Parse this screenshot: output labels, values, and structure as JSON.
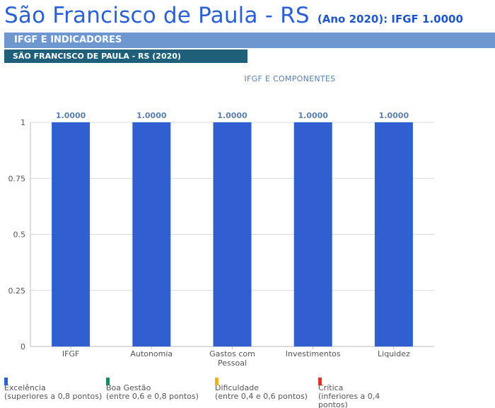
{
  "header": {
    "title": "São Francisco de Paula - RS",
    "subtitle": "(Ano 2020): IFGF  1.0000"
  },
  "section": {
    "primary_label": "IFGF E INDICADORES",
    "secondary_label": "SÃO FRANCISCO DE PAULA - RS (2020)"
  },
  "chart_data": {
    "type": "bar",
    "title": "IFGF E COMPONENTES",
    "categories": [
      "IFGF",
      "Autonomia",
      "Gastos com Pessoal",
      "Investimentos",
      "Liquidez"
    ],
    "category_lines": [
      [
        "IFGF"
      ],
      [
        "Autonomia"
      ],
      [
        "Gastos com",
        "Pessoal"
      ],
      [
        "Investimentos"
      ],
      [
        "Liquidez"
      ]
    ],
    "values": [
      1.0,
      1.0,
      1.0,
      1.0,
      1.0
    ],
    "data_labels": [
      "1.0000",
      "1.0000",
      "1.0000",
      "1.0000",
      "1.0000"
    ],
    "yticks": [
      "0",
      "0.25",
      "0.5",
      "0.75",
      "1"
    ],
    "ylim": [
      0,
      1
    ],
    "grid": true,
    "bar_color": "#2f5fd0",
    "xlabel": "",
    "ylabel": ""
  },
  "legend": [
    {
      "label": "Excelência",
      "range": "(superiores a 0,8 pontos)",
      "color": "#2f5fd0"
    },
    {
      "label": "Boa Gestão",
      "range": "(entre 0,6 e 0,8 pontos)",
      "color": "#1a8a5a"
    },
    {
      "label": "Dificuldade",
      "range": "(entre 0,4 e 0,6 pontos)",
      "color": "#f0b400"
    },
    {
      "label": "Crítica",
      "range": "(inferiores a 0,4 pontos)",
      "color": "#e0302a"
    }
  ]
}
